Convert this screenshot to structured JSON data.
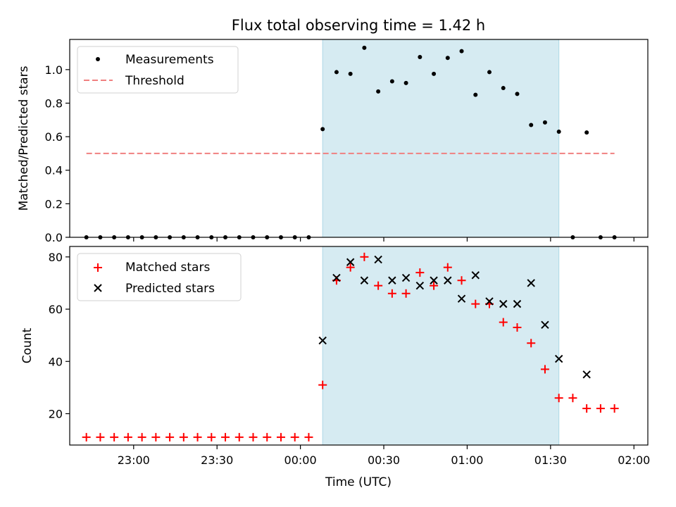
{
  "title": "Flux total observing time = 1.42 h",
  "colors": {
    "shade": "#add8e6",
    "measurement": "#000000",
    "threshold": "#f08080",
    "matched": "#ff0000",
    "predicted": "#000000"
  },
  "chart_data": [
    {
      "type": "scatter",
      "ylabel": "Matched/Predicted stars",
      "xlabel": "",
      "ylim": [
        0,
        1.18
      ],
      "yticks": [
        "0.0",
        "0.2",
        "0.4",
        "0.6",
        "0.8",
        "1.0"
      ],
      "ytick_values": [
        0,
        0.2,
        0.4,
        0.6,
        0.8,
        1.0
      ],
      "xlim": [
        "22:37",
        "02:05"
      ],
      "xtick_labels_shown": false,
      "legend_position": "upper-left",
      "shaded_interval": [
        "00:08",
        "01:33"
      ],
      "series": [
        {
          "name": "Measurements",
          "marker": "dot",
          "x": [
            "22:43",
            "22:48",
            "22:53",
            "22:58",
            "23:03",
            "23:08",
            "23:13",
            "23:18",
            "23:23",
            "23:28",
            "23:33",
            "23:38",
            "23:43",
            "23:48",
            "23:53",
            "23:58",
            "00:03",
            "00:08",
            "00:13",
            "00:18",
            "00:23",
            "00:28",
            "00:33",
            "00:38",
            "00:43",
            "00:48",
            "00:53",
            "00:58",
            "01:03",
            "01:08",
            "01:13",
            "01:18",
            "01:23",
            "01:28",
            "01:33",
            "01:38",
            "01:43",
            "01:48",
            "01:53"
          ],
          "y": [
            0,
            0,
            0,
            0,
            0,
            0,
            0,
            0,
            0,
            0,
            0,
            0,
            0,
            0,
            0,
            0,
            0,
            0.645,
            0.985,
            0.975,
            1.13,
            0.87,
            0.93,
            0.92,
            1.075,
            0.975,
            1.07,
            1.11,
            0.85,
            0.985,
            0.89,
            0.855,
            0.67,
            0.685,
            0.63,
            0,
            0.625,
            0,
            0
          ]
        },
        {
          "name": "Threshold",
          "marker": "dashed-line",
          "x": [
            "22:43",
            "01:53"
          ],
          "y": [
            0.5,
            0.5
          ]
        }
      ]
    },
    {
      "type": "scatter",
      "ylabel": "Count",
      "xlabel": "Time (UTC)",
      "ylim": [
        8,
        84
      ],
      "yticks": [
        "20",
        "40",
        "60",
        "80"
      ],
      "ytick_values": [
        20,
        40,
        60,
        80
      ],
      "xlim": [
        "22:37",
        "02:05"
      ],
      "xticks": [
        "23:00",
        "23:30",
        "00:00",
        "00:30",
        "01:00",
        "01:30",
        "02:00"
      ],
      "legend_position": "upper-left",
      "shaded_interval": [
        "00:08",
        "01:33"
      ],
      "series": [
        {
          "name": "Matched stars",
          "marker": "plus",
          "x": [
            "22:43",
            "22:48",
            "22:53",
            "22:58",
            "23:03",
            "23:08",
            "23:13",
            "23:18",
            "23:23",
            "23:28",
            "23:33",
            "23:38",
            "23:43",
            "23:48",
            "23:53",
            "23:58",
            "00:03",
            "00:08",
            "00:13",
            "00:18",
            "00:23",
            "00:28",
            "00:33",
            "00:38",
            "00:43",
            "00:48",
            "00:53",
            "00:58",
            "01:03",
            "01:08",
            "01:13",
            "01:18",
            "01:23",
            "01:28",
            "01:33",
            "01:38",
            "01:43",
            "01:48",
            "01:53"
          ],
          "y": [
            11,
            11,
            11,
            11,
            11,
            11,
            11,
            11,
            11,
            11,
            11,
            11,
            11,
            11,
            11,
            11,
            11,
            31,
            71,
            76,
            80,
            69,
            66,
            66,
            74,
            69,
            76,
            71,
            62,
            62,
            55,
            53,
            47,
            37,
            26,
            26,
            22,
            22,
            22
          ]
        },
        {
          "name": "Predicted stars",
          "marker": "x",
          "x": [
            "00:08",
            "00:13",
            "00:18",
            "00:23",
            "00:28",
            "00:33",
            "00:38",
            "00:43",
            "00:48",
            "00:53",
            "00:58",
            "01:03",
            "01:08",
            "01:13",
            "01:18",
            "01:23",
            "01:28",
            "01:33",
            "01:43"
          ],
          "y": [
            48,
            72,
            78,
            71,
            79,
            71,
            72,
            69,
            71,
            71,
            64,
            73,
            63,
            62,
            62,
            70,
            54,
            41,
            35
          ]
        }
      ]
    }
  ]
}
